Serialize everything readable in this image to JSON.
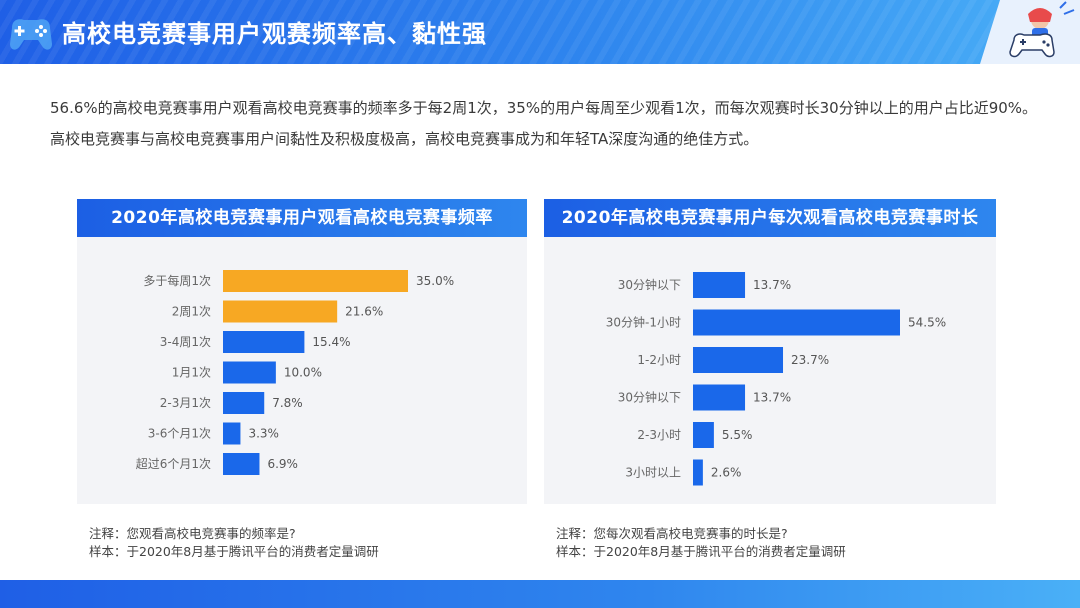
{
  "header": {
    "title": "高校电竞赛事用户观赛频率高、黏性强"
  },
  "intro": {
    "line1": "56.6%的高校电竞赛事用户观看高校电竞赛事的频率多于每2周1次，35%的用户每周至少观看1次，而每次观赛时长30分钟以上的用户占比近90%。",
    "line2": "高校电竞赛事与高校电竞赛事用户间黏性及积极度极高，高校电竞赛事成为和年轻TA深度沟通的绝佳方式。"
  },
  "colors": {
    "highlight": "#f7a823",
    "bar": "#1a68ea",
    "header": "#2378ec"
  },
  "chart_data": [
    {
      "type": "bar",
      "orientation": "horizontal",
      "title": "2020年高校电竞赛事用户观看高校电竞赛事频率",
      "categories": [
        "多于每周1次",
        "2周1次",
        "3-4周1次",
        "1月1次",
        "2-3月1次",
        "3-6个月1次",
        "超过6个月1次"
      ],
      "values": [
        35.0,
        21.6,
        15.4,
        10.0,
        7.8,
        3.3,
        6.9
      ],
      "labels": [
        "35.0%",
        "21.6%",
        "15.4%",
        "10.0%",
        "7.8%",
        "3.3%",
        "6.9%"
      ],
      "highlight": [
        true,
        true,
        false,
        false,
        false,
        false,
        false
      ],
      "unit": "%",
      "xlim": [
        0,
        35
      ],
      "grid": false
    },
    {
      "type": "bar",
      "orientation": "horizontal",
      "title": "2020年高校电竞赛事用户每次观看高校电竞赛事时长",
      "categories": [
        "30分钟以下",
        "30分钟-1小时",
        "1-2小时",
        "30分钟以下",
        "2-3小时",
        "3小时以上"
      ],
      "values": [
        13.7,
        54.5,
        23.7,
        13.7,
        5.5,
        2.6
      ],
      "labels": [
        "13.7%",
        "54.5%",
        "23.7%",
        "13.7%",
        "5.5%",
        "2.6%"
      ],
      "unit": "%",
      "xlim": [
        0,
        54.5
      ],
      "grid": false
    }
  ],
  "notes": {
    "left": {
      "question": "注释：您观看高校电竞赛事的频率是?",
      "sample": "样本：于2020年8月基于腾讯平台的消费者定量调研"
    },
    "right": {
      "question": "注释：您每次观看高校电竞赛事的时长是?",
      "sample": "样本：于2020年8月基于腾讯平台的消费者定量调研"
    }
  }
}
